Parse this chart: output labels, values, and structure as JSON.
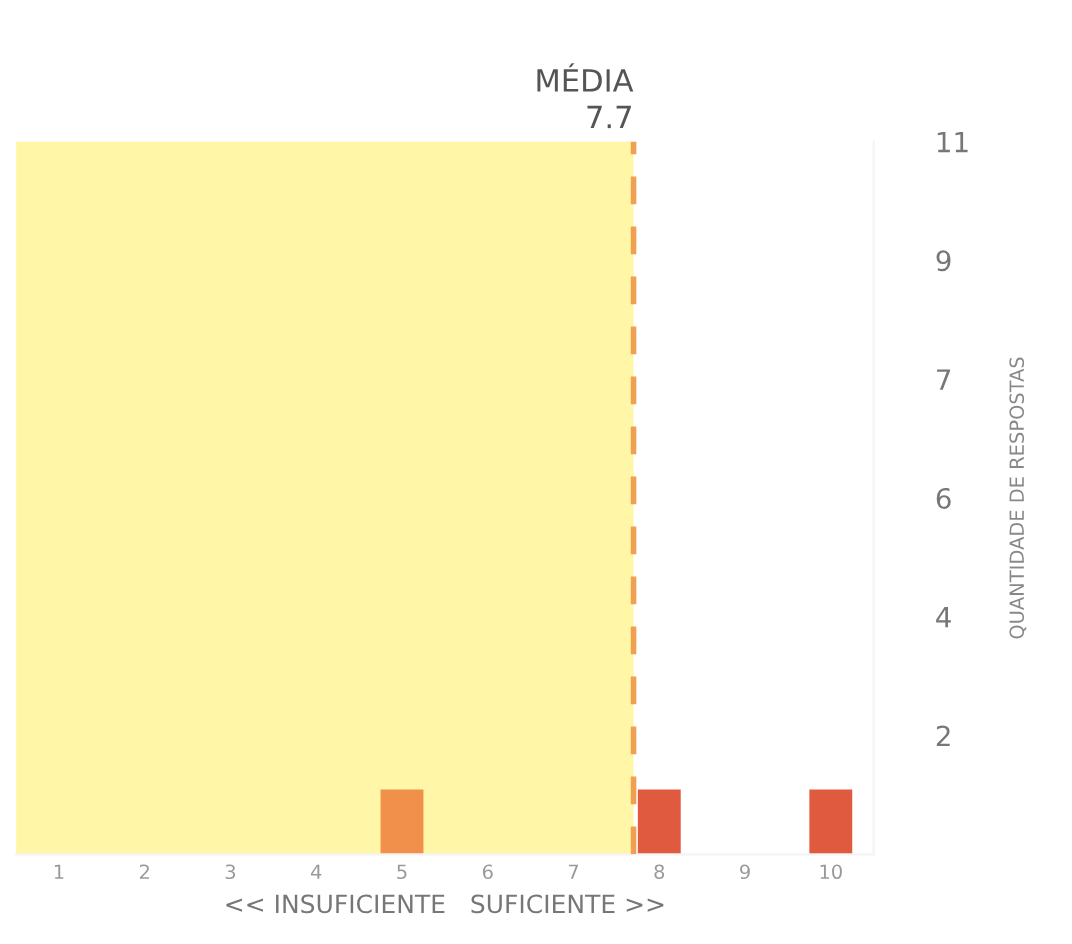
{
  "chart_data": {
    "type": "bar",
    "x": [
      1,
      2,
      3,
      4,
      5,
      6,
      7,
      8,
      9,
      10
    ],
    "values": [
      0,
      0,
      0,
      0,
      1,
      0,
      0,
      1,
      0,
      1
    ],
    "colors": [
      "#f0904a",
      "#f0904a",
      "#f0904a",
      "#f0904a",
      "#f0904a",
      "#f0904a",
      "#f0904a",
      "#e05a40",
      "#e05a40",
      "#e05a40"
    ],
    "xlim": [
      0.5,
      10.5
    ],
    "xticks": [
      1,
      2,
      3,
      4,
      5,
      6,
      7,
      8,
      9,
      10
    ],
    "ylim": [
      0,
      11
    ],
    "yticks": [
      {
        "value": 1.833,
        "label": "2"
      },
      {
        "value": 3.667,
        "label": "4"
      },
      {
        "value": 5.5,
        "label": "6"
      },
      {
        "value": 7.333,
        "label": "7"
      },
      {
        "value": 9.167,
        "label": "9"
      },
      11
    ],
    "xlabel": "<< INSUFICIENTE   SUFICIENTE >>",
    "ylabel": "QUANTIDADE DE RESPOSTAS",
    "ref_lines": [
      {
        "axis": "x",
        "value": 7.7,
        "label": "MÉDIA\n7.7",
        "color": "#f0a050",
        "line_style": "dashed"
      }
    ],
    "bands": [
      {
        "axis": "x",
        "from": 0.5,
        "to": 7.7,
        "color": "#fff6a8"
      }
    ],
    "grid": false,
    "legend": false
  }
}
